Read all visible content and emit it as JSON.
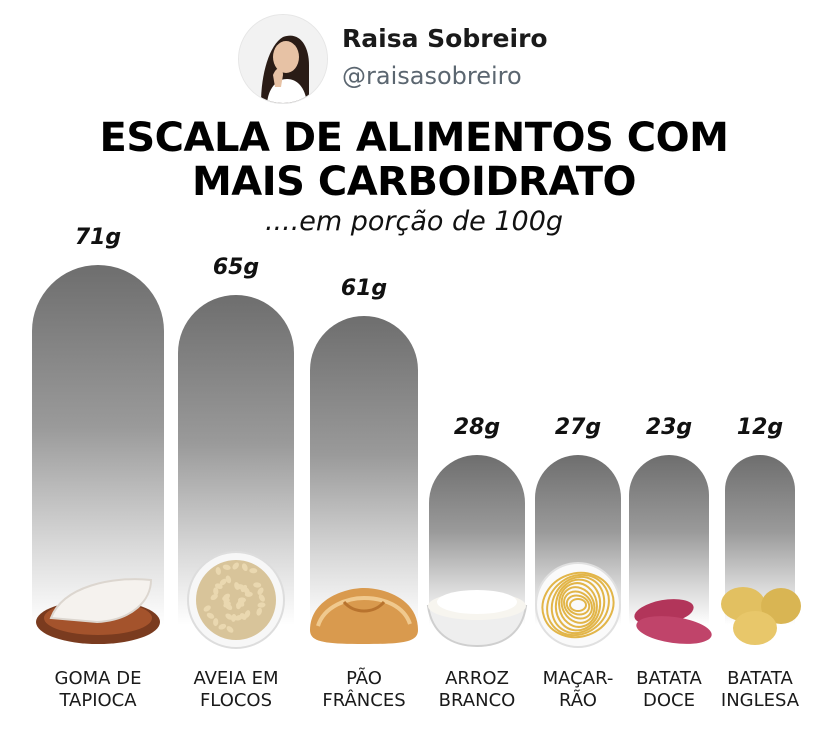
{
  "header": {
    "author_name": "Raisa Sobreiro",
    "author_handle": "@raisasobreiro"
  },
  "title_line1": "ESCALA DE ALIMENTOS COM",
  "title_line2": "MAIS CARBOIDRATO",
  "subtitle": "....em porção de 100g",
  "chart_data": {
    "type": "bar",
    "unit": "g",
    "categories": [
      [
        "GOMA DE",
        "TAPIOCA"
      ],
      [
        "AVEIA EM",
        "FLOCOS"
      ],
      [
        "PÃO",
        "FRÂNCES"
      ],
      [
        "ARROZ",
        "BRANCO"
      ],
      [
        "MAÇAR-",
        "RÃO"
      ],
      [
        "BATATA",
        "DOCE"
      ],
      [
        "BATATA",
        "INGLESA"
      ]
    ],
    "values": [
      71,
      65,
      61,
      28,
      27,
      23,
      12
    ],
    "value_labels": [
      "71g",
      "65g",
      "61g",
      "28g",
      "27g",
      "23g",
      "12g"
    ],
    "food_icons": [
      "tapioca-icon",
      "oats-bowl-icon",
      "bread-icon",
      "rice-bowl-icon",
      "spaghetti-icon",
      "sweet-potato-icon",
      "potato-icon"
    ],
    "bar_gradient": [
      "#6e6e6e",
      "#ffffff"
    ]
  }
}
